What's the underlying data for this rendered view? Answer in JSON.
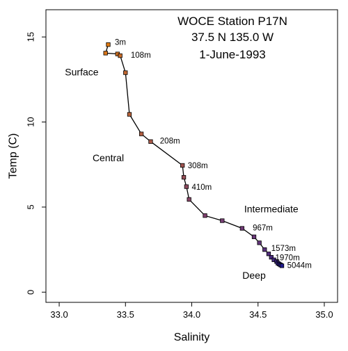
{
  "chart_data": {
    "type": "scatter",
    "title_lines": [
      "WOCE Station P17N",
      "37.5 N 135.0 W",
      "1-June-1993"
    ],
    "xlabel": "Salinity",
    "ylabel": "Temp (C)",
    "xlim": [
      32.9,
      35.1
    ],
    "ylim": [
      -0.6,
      16.6
    ],
    "xticks": [
      33.0,
      33.5,
      34.0,
      34.5,
      35.0
    ],
    "xtick_labels": [
      "33.0",
      "33.5",
      "34.0",
      "34.5",
      "35.0"
    ],
    "yticks": [
      0,
      5,
      10,
      15
    ],
    "ytick_labels": [
      "0",
      "5",
      "10",
      "15"
    ],
    "connected": true,
    "marker": "square",
    "color_shallow": "#e07a12",
    "color_mid": "#7b3f73",
    "color_deep": "#1f1a8c",
    "points": [
      {
        "x": 33.37,
        "y": 14.55
      },
      {
        "x": 33.35,
        "y": 14.05
      },
      {
        "x": 33.44,
        "y": 14.0
      },
      {
        "x": 33.46,
        "y": 13.9
      },
      {
        "x": 33.5,
        "y": 12.9
      },
      {
        "x": 33.53,
        "y": 10.45
      },
      {
        "x": 33.62,
        "y": 9.3
      },
      {
        "x": 33.69,
        "y": 8.85
      },
      {
        "x": 33.93,
        "y": 7.45
      },
      {
        "x": 33.94,
        "y": 6.75
      },
      {
        "x": 33.96,
        "y": 6.2
      },
      {
        "x": 33.98,
        "y": 5.45
      },
      {
        "x": 34.1,
        "y": 4.5
      },
      {
        "x": 34.23,
        "y": 4.2
      },
      {
        "x": 34.38,
        "y": 3.75
      },
      {
        "x": 34.47,
        "y": 3.25
      },
      {
        "x": 34.51,
        "y": 2.9
      },
      {
        "x": 34.55,
        "y": 2.5
      },
      {
        "x": 34.58,
        "y": 2.25
      },
      {
        "x": 34.6,
        "y": 2.05
      },
      {
        "x": 34.62,
        "y": 1.9
      },
      {
        "x": 34.64,
        "y": 1.8
      },
      {
        "x": 34.65,
        "y": 1.7
      },
      {
        "x": 34.66,
        "y": 1.65
      },
      {
        "x": 34.67,
        "y": 1.6
      },
      {
        "x": 34.68,
        "y": 1.55
      }
    ],
    "depth_labels": [
      {
        "text": "3m",
        "x": 33.42,
        "y": 14.65
      },
      {
        "text": "108m",
        "x": 33.54,
        "y": 13.9
      },
      {
        "text": "208m",
        "x": 33.76,
        "y": 8.85
      },
      {
        "text": "308m",
        "x": 33.97,
        "y": 7.4
      },
      {
        "text": "410m",
        "x": 34.0,
        "y": 6.15
      },
      {
        "text": "967m",
        "x": 34.46,
        "y": 3.75
      },
      {
        "text": "1573m",
        "x": 34.6,
        "y": 2.55
      },
      {
        "text": "1970m",
        "x": 34.63,
        "y": 2.0
      },
      {
        "text": "5044m",
        "x": 34.72,
        "y": 1.55
      }
    ],
    "region_labels": [
      {
        "text": "Surface",
        "x": 33.17,
        "y": 12.95
      },
      {
        "text": "Central",
        "x": 33.37,
        "y": 7.9
      },
      {
        "text": "Intermediate",
        "x": 34.6,
        "y": 4.9
      },
      {
        "text": "Deep",
        "x": 34.47,
        "y": 1.0
      }
    ]
  }
}
